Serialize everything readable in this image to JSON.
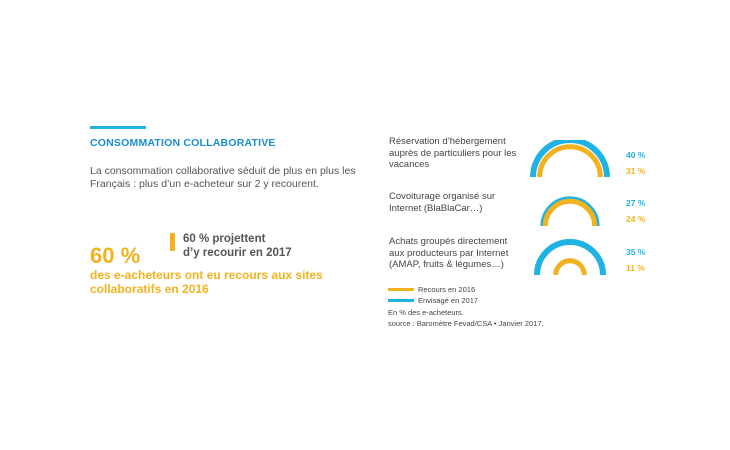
{
  "section": {
    "title": "CONSOMMATION COLLABORATIVE",
    "intro": "La consommation collaborative séduit de plus en plus les Français : plus d’un e-acheteur sur 2 y recourent."
  },
  "stats": {
    "big_value": "60 %",
    "headline": "des e-acheteurs ont eu recours aux sites collaboratifs en 2016",
    "side_value": "60 % projettent",
    "side_text": "d’y recourir en 2017"
  },
  "chart_data": {
    "type": "bar",
    "categories": [
      "Réservation d’hébergement auprès de particuliers pour les vacances",
      "Covoiturage organisé sur Internet (BlaBlaCar…)",
      "Achats groupés directement aux producteurs par Internet (AMAP, fruits & légumes…)"
    ],
    "series": [
      {
        "name": "Envisagé en 2017",
        "values": [
          40,
          27,
          35
        ],
        "labels": [
          "40 %",
          "27 %",
          "35 %"
        ],
        "color": "#1fb3e3"
      },
      {
        "name": "Recours en 2016",
        "values": [
          31,
          24,
          11
        ],
        "labels": [
          "31 %",
          "24 %",
          "11 %"
        ],
        "color": "#f2b21e"
      }
    ],
    "unit": "%"
  },
  "labels": {
    "q1": "Réservation d’hébergement auprès de particuliers pour les vacances",
    "q2": "Covoiturage organisé sur Internet (BlaBlaCar…)",
    "q3": "Achats groupés directement aux producteurs par Internet (AMAP, fruits & légumes…)"
  },
  "legend": {
    "recours": "Recours en 2016",
    "envisage": "Envisagé en 2017",
    "recours_color": "#f2b21e",
    "envisage_color": "#1fb3e3"
  },
  "notes": {
    "unit_note": "En % des e-acheteurs.",
    "source": "source : Baromètre Fevad/CSA • Janvier 2017."
  }
}
